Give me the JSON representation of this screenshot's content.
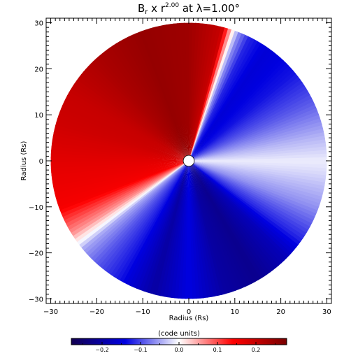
{
  "chart_data": [
    {
      "type": "heatmap",
      "title": {
        "prefix": "B",
        "prefix_subscript": "r",
        "middle": " x r",
        "exponent": "2.00",
        "suffix": " at λ=1.00°"
      },
      "xlabel": "Radius (Rs)",
      "ylabel": "Radius (Rs)",
      "xlim": [
        -31,
        31
      ],
      "ylim": [
        -31,
        31
      ],
      "xticks": [
        -30,
        -20,
        -10,
        0,
        10,
        20,
        30
      ],
      "yticks": [
        -30,
        -20,
        -10,
        0,
        10,
        20,
        30
      ],
      "xtick_labels": [
        "−30",
        "−20",
        "−10",
        "0",
        "10",
        "20",
        "30"
      ],
      "ytick_labels": [
        "−30",
        "−20",
        "−10",
        "0",
        "10",
        "20",
        "30"
      ],
      "disk_outer_radius": 30,
      "disk_inner_radius": 1.2,
      "grid": false,
      "azimuthal_profile": {
        "angle_units": "degrees from +x axis, counter-clockwise",
        "angles": [
          -180,
          -160,
          -148,
          -140,
          -132,
          -120,
          -105,
          -90,
          -75,
          -60,
          -45,
          -35,
          -20,
          -5,
          0,
          10,
          25,
          40,
          55,
          64,
          69,
          72,
          76,
          90,
          110,
          130,
          150,
          165,
          180
        ],
        "values": [
          0.17,
          0.15,
          0.06,
          -0.05,
          -0.09,
          -0.13,
          -0.2,
          -0.14,
          -0.2,
          -0.22,
          -0.18,
          -0.12,
          -0.06,
          -0.02,
          -0.01,
          -0.04,
          -0.09,
          -0.13,
          -0.15,
          -0.12,
          -0.06,
          0.03,
          0.2,
          0.24,
          0.25,
          0.23,
          0.2,
          0.19,
          0.17
        ]
      }
    },
    {
      "type": "colorbar",
      "label": "(code units)",
      "range": [
        -0.28,
        0.28
      ],
      "ticks": [
        -0.2,
        -0.1,
        0.0,
        0.1,
        0.2
      ],
      "tick_labels": [
        "−0.2",
        "−0.1",
        "0.0",
        "0.1",
        "0.2"
      ],
      "colors": [
        "#120050",
        "#0000e0",
        "#ffffff",
        "#ff0000",
        "#780000"
      ]
    }
  ]
}
